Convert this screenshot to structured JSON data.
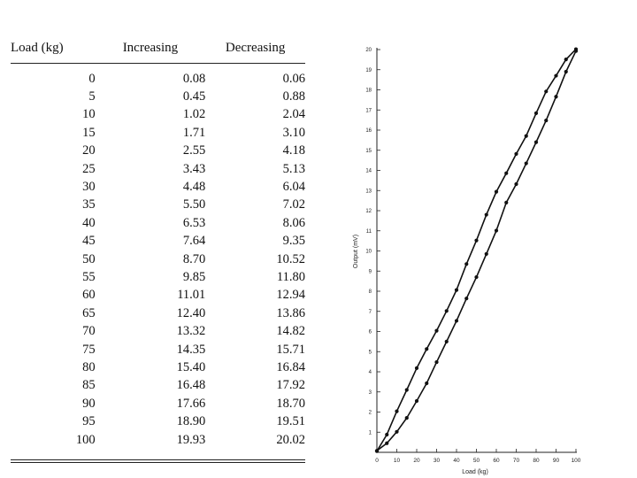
{
  "table": {
    "headers": [
      "Load (kg)",
      "Increasing",
      "Decreasing"
    ],
    "rows": [
      [
        "0",
        "0.08",
        "0.06"
      ],
      [
        "5",
        "0.45",
        "0.88"
      ],
      [
        "10",
        "1.02",
        "2.04"
      ],
      [
        "15",
        "1.71",
        "3.10"
      ],
      [
        "20",
        "2.55",
        "4.18"
      ],
      [
        "25",
        "3.43",
        "5.13"
      ],
      [
        "30",
        "4.48",
        "6.04"
      ],
      [
        "35",
        "5.50",
        "7.02"
      ],
      [
        "40",
        "6.53",
        "8.06"
      ],
      [
        "45",
        "7.64",
        "9.35"
      ],
      [
        "50",
        "8.70",
        "10.52"
      ],
      [
        "55",
        "9.85",
        "11.80"
      ],
      [
        "60",
        "11.01",
        "12.94"
      ],
      [
        "65",
        "12.40",
        "13.86"
      ],
      [
        "70",
        "13.32",
        "14.82"
      ],
      [
        "75",
        "14.35",
        "15.71"
      ],
      [
        "80",
        "15.40",
        "16.84"
      ],
      [
        "85",
        "16.48",
        "17.92"
      ],
      [
        "90",
        "17.66",
        "18.70"
      ],
      [
        "95",
        "18.90",
        "19.51"
      ],
      [
        "100",
        "19.93",
        "20.02"
      ]
    ]
  },
  "chart_data": {
    "type": "line",
    "xlabel": "Load (kg)",
    "ylabel": "Output (mV)",
    "xlim": [
      0,
      100
    ],
    "ylim": [
      0,
      20
    ],
    "x_ticks": [
      0,
      10,
      20,
      30,
      40,
      50,
      60,
      70,
      80,
      90,
      100
    ],
    "y_ticks": [
      1,
      2,
      3,
      4,
      5,
      6,
      7,
      8,
      9,
      10,
      11,
      12,
      13,
      14,
      15,
      16,
      17,
      18,
      19,
      20
    ],
    "grid": false,
    "legend": "none",
    "x": [
      0,
      5,
      10,
      15,
      20,
      25,
      30,
      35,
      40,
      45,
      50,
      55,
      60,
      65,
      70,
      75,
      80,
      85,
      90,
      95,
      100
    ],
    "series": [
      {
        "values": [
          0.08,
          0.45,
          1.02,
          1.71,
          2.55,
          3.43,
          4.48,
          5.5,
          6.53,
          7.64,
          8.7,
          9.85,
          11.01,
          12.4,
          13.32,
          14.35,
          15.4,
          16.48,
          17.66,
          18.9,
          19.93
        ]
      },
      {
        "values": [
          0.06,
          0.88,
          2.04,
          3.1,
          4.18,
          5.13,
          6.04,
          7.02,
          8.06,
          9.35,
          10.52,
          11.8,
          12.94,
          13.86,
          14.82,
          15.71,
          16.84,
          17.92,
          18.7,
          19.51,
          20.02
        ]
      }
    ]
  }
}
